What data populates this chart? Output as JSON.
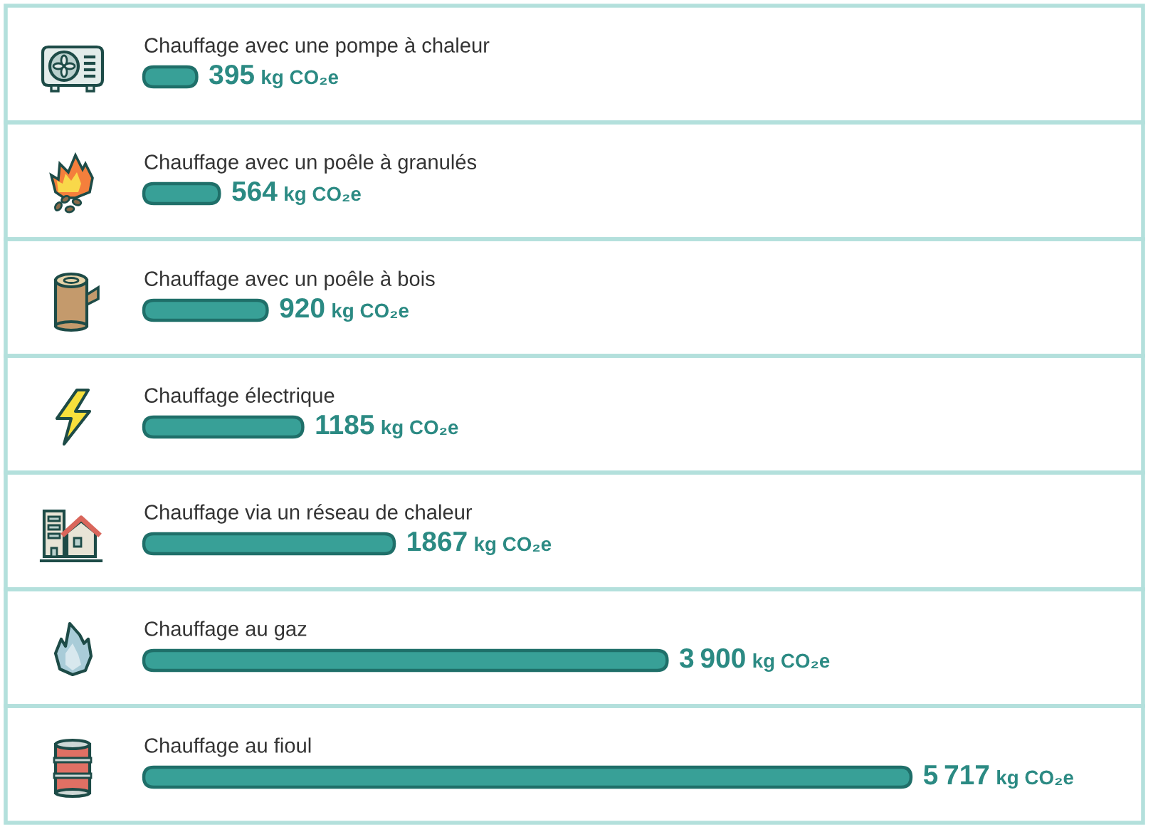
{
  "chart_data": {
    "type": "bar",
    "orientation": "horizontal",
    "categories": [
      "Chauffage avec une pompe à chaleur",
      "Chauffage avec un poêle à granulés",
      "Chauffage avec un poêle à bois",
      "Chauffage électrique",
      "Chauffage via un réseau de chaleur",
      "Chauffage au gaz",
      "Chauffage au fioul"
    ],
    "values": [
      395,
      564,
      920,
      1185,
      1867,
      3900,
      5717
    ],
    "color": "#38a097",
    "value_labels": [
      "395 kg CO₂e",
      "564 kg CO₂e",
      "920 kg CO₂e",
      "1185 kg CO₂e",
      "1867 kg CO₂e",
      "3 900 kg CO₂e",
      "5 717 kg CO₂e"
    ]
  }
}
